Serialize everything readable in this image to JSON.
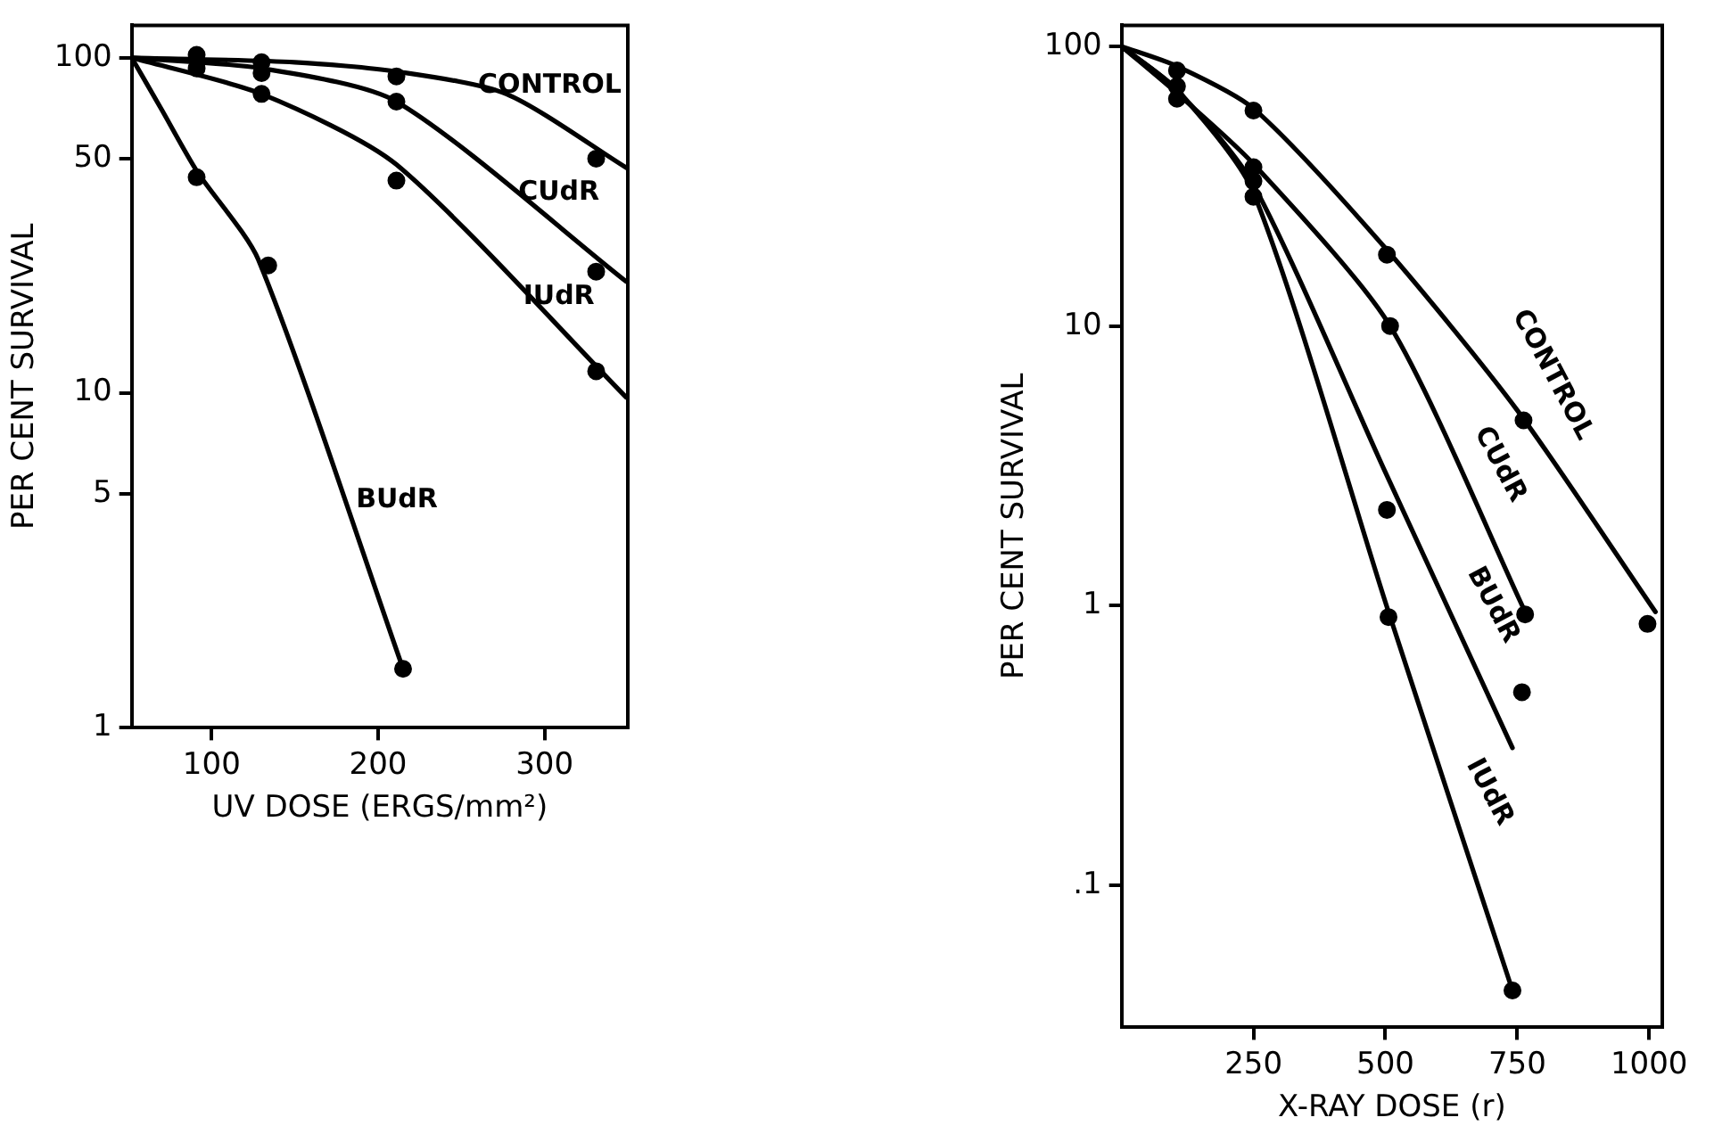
{
  "chart_data": [
    {
      "type": "line",
      "xlabel": "UV DOSE (ERGS/mm²)",
      "ylabel": "PER CENT SURVIVAL",
      "log": "y",
      "grid": false,
      "legend": false,
      "xlim": [
        52,
        350
      ],
      "xticks": [
        100,
        200,
        300
      ],
      "ylim": [
        1,
        125
      ],
      "yticks": [
        1,
        5,
        10,
        50,
        100
      ],
      "series": [
        {
          "type": "scatter",
          "marker": "circle",
          "color": "#000000",
          "x": [
            91,
            130,
            211,
            331
          ],
          "values": [
            102,
            97,
            88,
            50
          ]
        },
        {
          "type": "scatter",
          "marker": "circle",
          "color": "#000000",
          "x": [
            91,
            130,
            211,
            331
          ],
          "values": [
            93,
            90,
            74,
            23
          ]
        },
        {
          "type": "scatter",
          "marker": "circle",
          "color": "#000000",
          "x": [
            130,
            211,
            331
          ],
          "values": [
            78,
            43,
            11.6
          ]
        },
        {
          "type": "scatter",
          "marker": "circle",
          "color": "#000000",
          "x": [
            91,
            134,
            215
          ],
          "values": [
            44,
            24,
            1.5
          ]
        },
        {
          "type": "line",
          "name": "CONTROL",
          "marker": "none",
          "color": "#000000",
          "x": [
            52,
            150,
            211,
            277,
            349
          ],
          "values": [
            100,
            97,
            91,
            78,
            47
          ]
        },
        {
          "type": "line",
          "name": "CUdR",
          "marker": "none",
          "color": "#000000",
          "x": [
            52,
            130,
            211,
            349
          ],
          "values": [
            100,
            93,
            74,
            21.5
          ]
        },
        {
          "type": "line",
          "name": "IUdR",
          "marker": "none",
          "color": "#000000",
          "x": [
            52,
            130,
            211,
            349
          ],
          "values": [
            100,
            78,
            48,
            9.7
          ]
        },
        {
          "type": "line",
          "name": "BUdR",
          "marker": "none",
          "color": "#000000",
          "x": [
            52,
            70,
            91,
            128,
            215
          ],
          "values": [
            100,
            70,
            46,
            25,
            1.5
          ]
        }
      ]
    },
    {
      "type": "line",
      "xlabel": "X-RAY DOSE (r)",
      "ylabel": "PER CENT SURVIVAL",
      "log": "y",
      "grid": false,
      "legend": false,
      "xlim": [
        0,
        1025
      ],
      "xticks": [
        250,
        500,
        750,
        1000
      ],
      "ylim": [
        0.031,
        119
      ],
      "yticks": [
        100,
        10,
        1,
        {
          "value": 0.1,
          "label": ".1"
        }
      ],
      "series": [
        {
          "type": "scatter",
          "marker": "circle",
          "color": "#000000",
          "x": [
            105,
            250,
            503,
            762,
            997
          ],
          "values": [
            82,
            59,
            18,
            4.6,
            0.86
          ]
        },
        {
          "type": "scatter",
          "marker": "circle",
          "color": "#000000",
          "x": [
            105,
            250,
            509,
            765
          ],
          "values": [
            65,
            37,
            10,
            0.93
          ]
        },
        {
          "type": "scatter",
          "marker": "circle",
          "color": "#000000",
          "x": [
            105,
            250,
            503,
            759
          ],
          "values": [
            72,
            33,
            2.2,
            0.49
          ]
        },
        {
          "type": "scatter",
          "marker": "circle",
          "color": "#000000",
          "x": [
            250,
            506,
            741
          ],
          "values": [
            29,
            0.91,
            0.042
          ]
        },
        {
          "type": "line",
          "name": "CONTROL",
          "marker": "none",
          "color": "#000000",
          "x": [
            0,
            105,
            250,
            500,
            750,
            1012
          ],
          "values": [
            100,
            85,
            60,
            19,
            5,
            0.95
          ]
        },
        {
          "type": "line",
          "name": "CUdR",
          "marker": "none",
          "color": "#000000",
          "x": [
            0,
            105,
            250,
            509,
            765
          ],
          "values": [
            100,
            68,
            38,
            10,
            0.95
          ]
        },
        {
          "type": "line",
          "name": "BUdR",
          "marker": "none",
          "color": "#000000",
          "x": [
            0,
            105,
            250,
            500,
            741
          ],
          "values": [
            100,
            70,
            32,
            3,
            0.31
          ]
        },
        {
          "type": "line",
          "name": "IUdR",
          "marker": "none",
          "color": "#000000",
          "x": [
            0,
            105,
            250,
            506,
            741
          ],
          "values": [
            100,
            70,
            30,
            0.95,
            0.042
          ]
        }
      ]
    }
  ]
}
